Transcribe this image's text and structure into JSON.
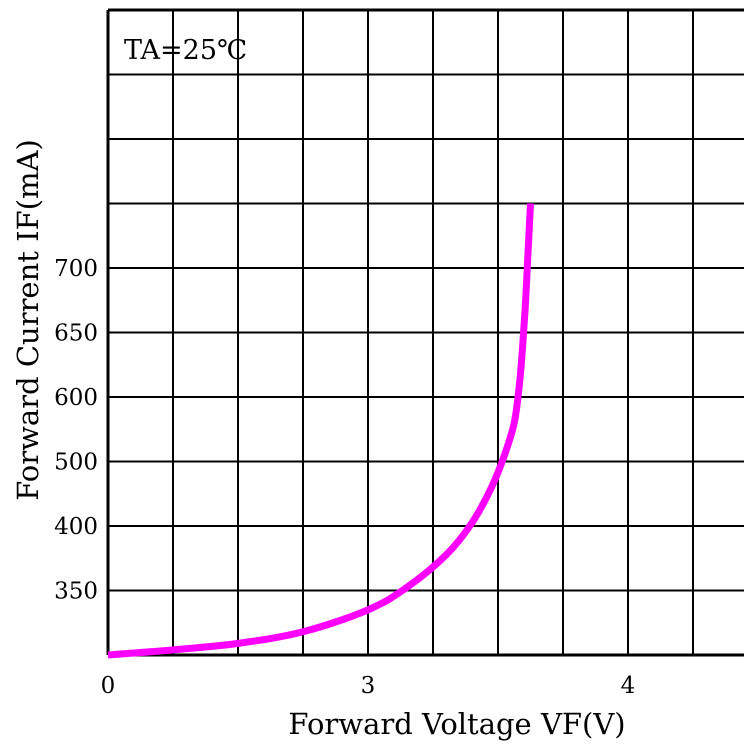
{
  "chart_data": {
    "type": "line",
    "annotation": "TA=25℃",
    "xlabel": "Forward Voltage VF(V)",
    "ylabel": "Forward Current IF(mA)",
    "x_ticks": [
      {
        "label": "0",
        "col": 0
      },
      {
        "label": "3",
        "col": 4
      },
      {
        "label": "4",
        "col": 8
      }
    ],
    "y_ticks": [
      {
        "label": "350",
        "row": 1
      },
      {
        "label": "400",
        "row": 2
      },
      {
        "label": "500",
        "row": 3
      },
      {
        "label": "600",
        "row": 4
      },
      {
        "label": "650",
        "row": 5
      },
      {
        "label": "700",
        "row": 6
      }
    ],
    "grid_columns": 10,
    "grid_rows": 10,
    "grid": true,
    "line_color": "#ff00ff",
    "curve": {
      "note": "points in grid units (column, row from the bottom axis)",
      "points": [
        [
          0.0,
          0.0
        ],
        [
          1.0,
          0.08
        ],
        [
          2.0,
          0.18
        ],
        [
          3.0,
          0.36
        ],
        [
          4.0,
          0.7
        ],
        [
          4.6,
          1.05
        ],
        [
          5.2,
          1.55
        ],
        [
          5.6,
          2.05
        ],
        [
          5.9,
          2.6
        ],
        [
          6.1,
          3.1
        ],
        [
          6.25,
          3.6
        ],
        [
          6.33,
          4.2
        ],
        [
          6.38,
          4.8
        ],
        [
          6.42,
          5.4
        ],
        [
          6.45,
          6.0
        ],
        [
          6.48,
          6.6
        ],
        [
          6.5,
          7.0
        ]
      ]
    }
  }
}
